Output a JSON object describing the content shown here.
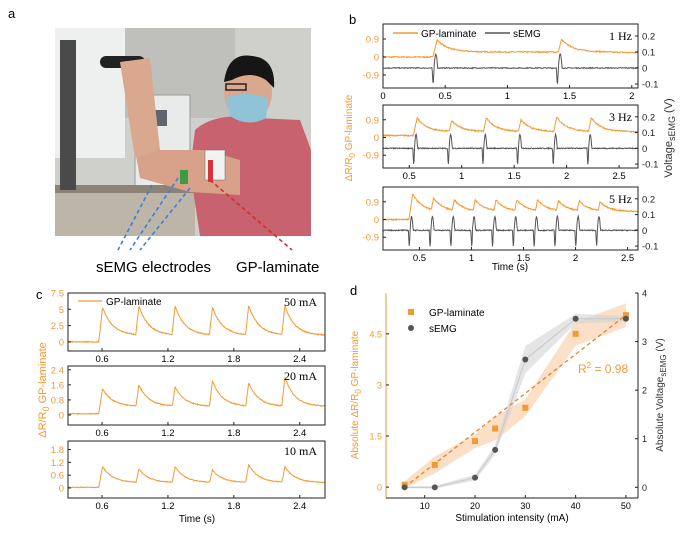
{
  "panel_labels": {
    "a": "a",
    "b": "b",
    "c": "c",
    "d": "d"
  },
  "colors": {
    "gp": "#f39a35",
    "semg": "#555555",
    "shade_gp": "#f8c9a0",
    "shade_semg": "#d4d4d4",
    "electrode_arrow": "#3b7fd6",
    "laminate_arrow": "#d62c2c"
  },
  "photo": {
    "annotation_electrodes": "sEMG electrodes",
    "annotation_laminate": "GP-laminate"
  },
  "panel_b": {
    "legend": [
      "GP-laminate",
      "sEMG"
    ],
    "ylabel_left": {
      "main": "ΔR/R",
      "sub": "0",
      "rest": " GP-laminate"
    },
    "ylabel_right": {
      "main": "Voltage",
      "sub": "sEMG",
      "rest": " (V)"
    },
    "xlabel": "Time (s)"
  },
  "panel_c": {
    "legend": "GP-laminate",
    "ylabel": {
      "main": "ΔR/R",
      "sub": "0",
      "rest": " GP-laminate"
    },
    "xlabel": "Time (s)"
  },
  "panel_d": {
    "legend": [
      "GP-laminate",
      "sEMG"
    ],
    "ylabel_left": {
      "main": "Absolute ΔR/R",
      "sub": "0",
      "rest": " GP-laminate"
    },
    "ylabel_right": {
      "main": "Absolute Voltage",
      "sub": "sEMG",
      "rest": " (V)"
    },
    "xlabel": "Stimulation intensity (mA)",
    "r2_label": {
      "main": "R",
      "sup": "2",
      "rest": " = 0.98"
    }
  },
  "chart_data": [
    {
      "panel": "b",
      "type": "line",
      "label": "1 Hz",
      "xlim": [
        0,
        2.05
      ],
      "ylim_left": [
        -1.55,
        1.65
      ],
      "ylim_right": [
        -0.125,
        0.275
      ],
      "xticks": [
        0,
        0.5,
        1,
        1.5,
        2
      ],
      "yticks_left": [
        -0.9,
        0,
        0.9
      ],
      "yticks_right": [
        -0.1,
        0,
        0.1,
        0.2
      ],
      "pulse_times": [
        0.4,
        1.4
      ],
      "gp_peaks": [
        0.85,
        0.88
      ],
      "gp_residual": 0.25,
      "gp_baseline": 0,
      "semg_spike": [
        0.04,
        -0.1
      ]
    },
    {
      "panel": "b",
      "type": "line",
      "label": "3 Hz",
      "xlim": [
        0.25,
        2.68
      ],
      "ylim_left": [
        -1.55,
        1.65
      ],
      "ylim_right": [
        -0.125,
        0.275
      ],
      "xticks": [
        0.5,
        1,
        1.5,
        2,
        2.5
      ],
      "yticks_left": [
        -0.9,
        0,
        0.9
      ],
      "yticks_right": [
        -0.1,
        0,
        0.1,
        0.2
      ],
      "pulse_times": [
        0.54,
        0.87,
        1.2,
        1.53,
        1.87,
        2.2
      ],
      "gp_peaks": [
        1.0,
        0.85,
        1.0,
        0.9,
        1.05,
        1.0
      ],
      "gp_residual": 0.3,
      "gp_baseline": 0.1,
      "semg_spike": [
        0.04,
        -0.1
      ]
    },
    {
      "panel": "b",
      "type": "line",
      "label": "5 Hz",
      "xlim": [
        0.15,
        2.6
      ],
      "ylim_left": [
        -1.55,
        1.65
      ],
      "ylim_right": [
        -0.125,
        0.275
      ],
      "xticks": [
        0.5,
        1,
        1.5,
        2,
        2.5
      ],
      "yticks_left": [
        -0.9,
        0,
        0.9
      ],
      "yticks_right": [
        -0.1,
        0,
        0.1,
        0.2
      ],
      "pulse_times": [
        0.4,
        0.6,
        0.8,
        1.0,
        1.2,
        1.4,
        1.6,
        1.8,
        2.0,
        2.2
      ],
      "gp_peaks": [
        1.3,
        1.1,
        1.0,
        1.0,
        1.0,
        1.0,
        1.0,
        0.95,
        0.95,
        0.9
      ],
      "gp_residual": 0.4,
      "gp_baseline": 0,
      "semg_spike": [
        0.04,
        -0.1
      ]
    },
    {
      "panel": "c",
      "type": "line",
      "label": "50 mA",
      "xlim": [
        0.29,
        2.63
      ],
      "ylim": [
        -1.4,
        7.5
      ],
      "xticks": [
        0.6,
        1.2,
        1.8,
        2.4
      ],
      "yticks": [
        0,
        2.5,
        5,
        7.5
      ],
      "pulse_times": [
        0.57,
        0.9,
        1.23,
        1.57,
        1.9,
        2.23
      ],
      "gp_peaks": [
        5.3,
        5.5,
        5.5,
        5.3,
        5.6,
        5.5
      ],
      "gp_residual": 1.0,
      "gp_baseline": 0
    },
    {
      "panel": "c",
      "type": "line",
      "label": "20 mA",
      "xlim": [
        0.29,
        2.63
      ],
      "ylim": [
        -0.53,
        2.6
      ],
      "xticks": [
        0.6,
        1.2,
        1.8,
        2.4
      ],
      "yticks": [
        0,
        0.8,
        1.6,
        2.4
      ],
      "pulse_times": [
        0.57,
        0.9,
        1.23,
        1.57,
        1.9,
        2.23
      ],
      "gp_peaks": [
        1.4,
        1.6,
        1.5,
        1.8,
        1.7,
        2.0
      ],
      "gp_residual": 0.45,
      "gp_baseline": 0.07
    },
    {
      "panel": "c",
      "type": "line",
      "label": "10 mA",
      "xlim": [
        0.29,
        2.63
      ],
      "ylim": [
        -0.47,
        2.2
      ],
      "xticks": [
        0.6,
        1.2,
        1.8,
        2.4
      ],
      "yticks": [
        0,
        0.6,
        1.2,
        1.8
      ],
      "pulse_times": [
        0.57,
        0.9,
        1.23,
        1.57,
        1.9,
        2.23
      ],
      "gp_peaks": [
        1.0,
        0.9,
        1.0,
        0.85,
        1.1,
        1.0
      ],
      "gp_residual": 0.25,
      "gp_baseline": 0.03
    },
    {
      "panel": "d",
      "type": "scatter",
      "xlim": [
        2.3,
        52.4
      ],
      "ylim_left": [
        -0.32,
        5.7
      ],
      "ylim_right": [
        -0.22,
        4
      ],
      "xticks": [
        10,
        20,
        30,
        40,
        50
      ],
      "yticks_left": [
        0,
        1.5,
        3,
        4.5
      ],
      "yticks_right": [
        0,
        1,
        2,
        3,
        4
      ],
      "series": [
        {
          "name": "GP-laminate",
          "axis": "left",
          "x": [
            6,
            12,
            20,
            24,
            30,
            40,
            50
          ],
          "y": [
            0.07,
            0.65,
            1.35,
            1.72,
            2.33,
            4.5,
            5.05
          ],
          "band": [
            0.1,
            0.25,
            0.2,
            0.35,
            0.25,
            0.35,
            0.35
          ]
        },
        {
          "name": "sEMG",
          "axis": "right",
          "x": [
            6,
            12,
            20,
            24,
            30,
            40,
            50
          ],
          "y": [
            0,
            0,
            0.2,
            0.77,
            2.63,
            3.47,
            3.47
          ],
          "band": [
            0.02,
            0.03,
            0.06,
            0.1,
            0.28,
            0.1,
            0.06
          ]
        }
      ],
      "fit": {
        "x": [
          6,
          50
        ],
        "y": [
          0,
          5.05
        ],
        "r2": 0.98
      }
    }
  ]
}
